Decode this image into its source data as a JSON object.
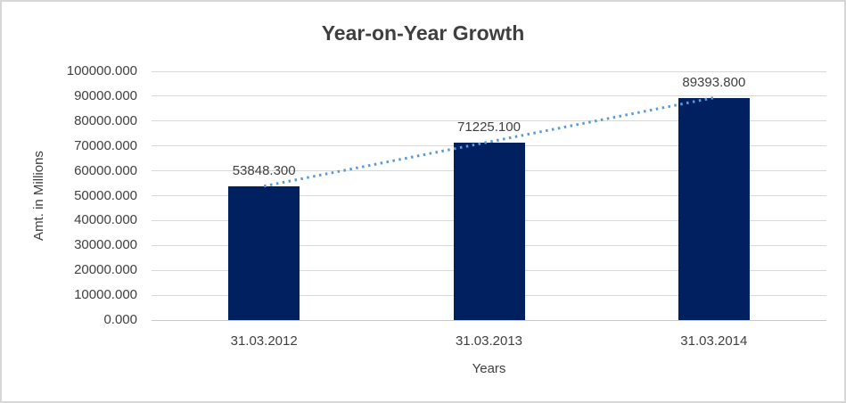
{
  "chart_data": {
    "type": "bar",
    "title": "Year-on-Year Growth",
    "categories": [
      "31.03.2012",
      "31.03.2013",
      "31.03.2014"
    ],
    "values": [
      53848.3,
      71225.1,
      89393.8
    ],
    "value_labels": [
      "53848.300",
      "71225.100",
      "89393.800"
    ],
    "xlabel": "Years",
    "ylabel": "Amt. in Millions",
    "ylim": [
      0,
      100000
    ],
    "ytick_step": 10000,
    "ytick_labels": [
      "0.000",
      "10000.000",
      "20000.000",
      "30000.000",
      "40000.000",
      "50000.000",
      "60000.000",
      "70000.000",
      "80000.000",
      "90000.000",
      "100000.000"
    ],
    "grid": true,
    "legend": "none",
    "trendline": {
      "type": "linear",
      "style": "dotted",
      "endpoint_values": [
        53848.3,
        89393.8
      ]
    },
    "colors": {
      "bar": "#002060",
      "trendline": "#5b9bd5",
      "gridline": "#d9d9d9",
      "axis_line": "#c9c9c9",
      "text": "#404040",
      "title_text": "#3f3f3f",
      "border": "#d7d7d7"
    }
  }
}
